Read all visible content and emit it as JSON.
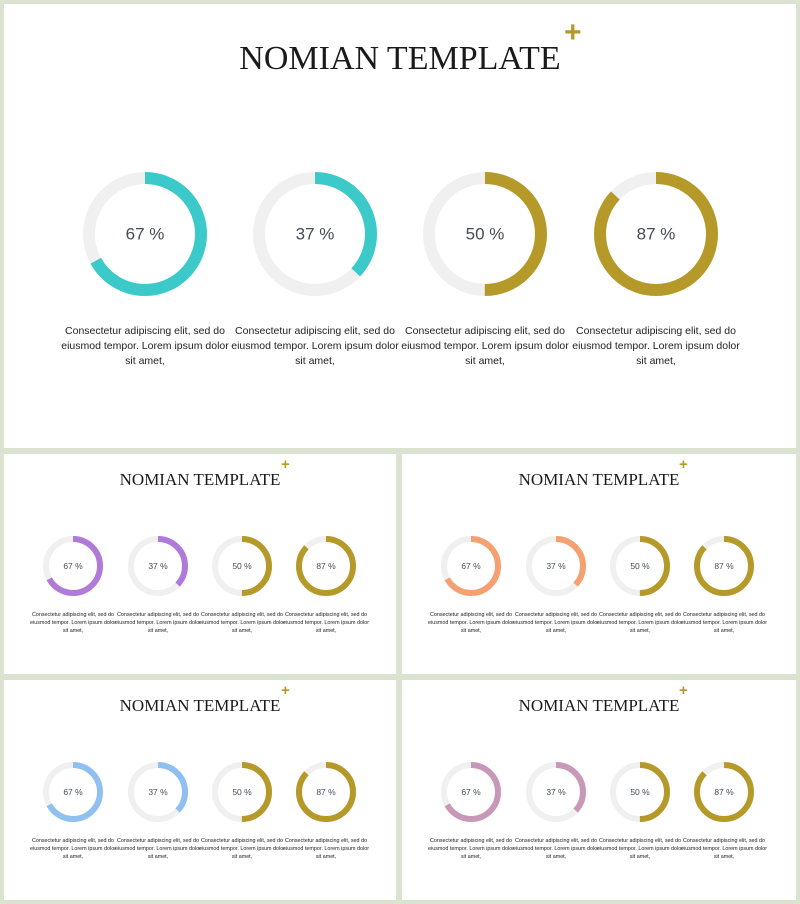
{
  "accent_plus_color": "#b59a2a",
  "track_color": "#f0f0f0",
  "slides": [
    {
      "title": "NOMIAN TEMPLATE",
      "plus": "+",
      "items": [
        {
          "value": 67,
          "label": "67 %",
          "color": "#3cc9c9",
          "text": "Consectetur adipiscing elit, sed do eiusmod tempor. Lorem ipsum dolor sit amet,"
        },
        {
          "value": 37,
          "label": "37 %",
          "color": "#3cc9c9",
          "text": "Consectetur adipiscing elit, sed do eiusmod tempor. Lorem ipsum dolor sit amet,"
        },
        {
          "value": 50,
          "label": "50 %",
          "color": "#b59a2a",
          "text": "Consectetur adipiscing elit, sed do eiusmod tempor. Lorem ipsum dolor sit amet,"
        },
        {
          "value": 87,
          "label": "87 %",
          "color": "#b59a2a",
          "text": "Consectetur adipiscing elit, sed do eiusmod tempor. Lorem ipsum dolor sit amet,"
        }
      ]
    },
    {
      "title": "NOMIAN TEMPLATE",
      "plus": "+",
      "items": [
        {
          "value": 67,
          "label": "67 %",
          "color": "#b07ad9",
          "text": "Consectetur adipiscing elit, sed do eiusmod tempor. Lorem ipsum dolor sit amet,"
        },
        {
          "value": 37,
          "label": "37 %",
          "color": "#b07ad9",
          "text": "Consectetur adipiscing elit, sed do eiusmod tempor. Lorem ipsum dolor sit amet,"
        },
        {
          "value": 50,
          "label": "50 %",
          "color": "#b59a2a",
          "text": "Consectetur adipiscing elit, sed do eiusmod tempor. Lorem ipsum dolor sit amet,"
        },
        {
          "value": 87,
          "label": "87 %",
          "color": "#b59a2a",
          "text": "Consectetur adipiscing elit, sed do eiusmod tempor. Lorem ipsum dolor sit amet,"
        }
      ]
    },
    {
      "title": "NOMIAN TEMPLATE",
      "plus": "+",
      "items": [
        {
          "value": 67,
          "label": "67 %",
          "color": "#f4a070",
          "text": "Consectetur adipiscing elit, sed do eiusmod tempor. Lorem ipsum dolor sit amet,"
        },
        {
          "value": 37,
          "label": "37 %",
          "color": "#f4a070",
          "text": "Consectetur adipiscing elit, sed do eiusmod tempor. Lorem ipsum dolor sit amet,"
        },
        {
          "value": 50,
          "label": "50 %",
          "color": "#b59a2a",
          "text": "Consectetur adipiscing elit, sed do eiusmod tempor. Lorem ipsum dolor sit amet,"
        },
        {
          "value": 87,
          "label": "87 %",
          "color": "#b59a2a",
          "text": "Consectetur adipiscing elit, sed do eiusmod tempor. Lorem ipsum dolor sit amet,"
        }
      ]
    },
    {
      "title": "NOMIAN TEMPLATE",
      "plus": "+",
      "items": [
        {
          "value": 67,
          "label": "67 %",
          "color": "#8fc0f0",
          "text": "Consectetur adipiscing elit, sed do eiusmod tempor. Lorem ipsum dolor sit amet,"
        },
        {
          "value": 37,
          "label": "37 %",
          "color": "#8fc0f0",
          "text": "Consectetur adipiscing elit, sed do eiusmod tempor. Lorem ipsum dolor sit amet,"
        },
        {
          "value": 50,
          "label": "50 %",
          "color": "#b59a2a",
          "text": "Consectetur adipiscing elit, sed do eiusmod tempor. Lorem ipsum dolor sit amet,"
        },
        {
          "value": 87,
          "label": "87 %",
          "color": "#b59a2a",
          "text": "Consectetur adipiscing elit, sed do eiusmod tempor. Lorem ipsum dolor sit amet,"
        }
      ]
    },
    {
      "title": "NOMIAN TEMPLATE",
      "plus": "+",
      "items": [
        {
          "value": 67,
          "label": "67 %",
          "color": "#c898b8",
          "text": "Consectetur adipiscing elit, sed do eiusmod tempor. Lorem ipsum dolor sit amet,"
        },
        {
          "value": 37,
          "label": "37 %",
          "color": "#c898b8",
          "text": "Consectetur adipiscing elit, sed do eiusmod tempor. Lorem ipsum dolor sit amet,"
        },
        {
          "value": 50,
          "label": "50 %",
          "color": "#b59a2a",
          "text": "Consectetur adipiscing elit, sed do eiusmod tempor. Lorem ipsum dolor sit amet,"
        },
        {
          "value": 87,
          "label": "87 %",
          "color": "#b59a2a",
          "text": "Consectetur adipiscing elit, sed do eiusmod tempor. Lorem ipsum dolor sit amet,"
        }
      ]
    }
  ]
}
